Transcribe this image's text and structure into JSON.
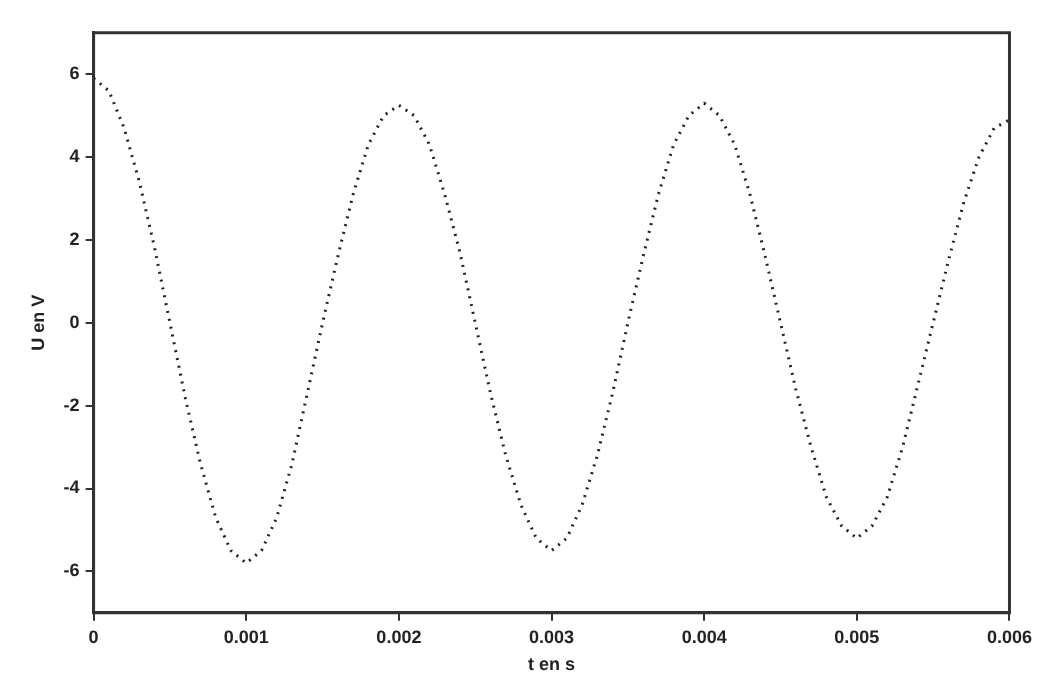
{
  "chart_data": {
    "type": "line",
    "xlabel": "t en s",
    "ylabel": "U en V",
    "x": [
      0,
      0.0001,
      0.0002,
      0.0003,
      0.0004,
      0.0005,
      0.0006,
      0.0007,
      0.0008,
      0.0009,
      0.001,
      0.0011,
      0.0012,
      0.0013,
      0.0014,
      0.0015,
      0.0016,
      0.0017,
      0.0018,
      0.0019,
      0.002,
      0.0021,
      0.0022,
      0.0023,
      0.0024,
      0.0025,
      0.0026,
      0.0027,
      0.0028,
      0.0029,
      0.003,
      0.0031,
      0.0032,
      0.0033,
      0.0034,
      0.0035,
      0.0036,
      0.0037,
      0.0038,
      0.0039,
      0.004,
      0.0041,
      0.0042,
      0.0043,
      0.0044,
      0.0045,
      0.0046,
      0.0047,
      0.0048,
      0.0049,
      0.005,
      0.0051,
      0.0052,
      0.0053,
      0.0054,
      0.0055,
      0.0056,
      0.0057,
      0.0058,
      0.0059,
      0.006
    ],
    "series": [
      {
        "color": "#222222",
        "values": [
          5.9,
          5.6,
          4.7,
          3.4,
          1.8,
          0,
          -1.8,
          -3.4,
          -4.7,
          -5.5,
          -5.8,
          -5.5,
          -4.7,
          -3.4,
          -1.7,
          0,
          1.6,
          3.1,
          4.3,
          5.0,
          5.25,
          5.0,
          4.3,
          3.1,
          1.7,
          0,
          -1.7,
          -3.2,
          -4.4,
          -5.2,
          -5.5,
          -5.2,
          -4.4,
          -3.2,
          -1.7,
          0,
          1.6,
          3.1,
          4.3,
          5.0,
          5.3,
          5.0,
          4.3,
          3.1,
          1.6,
          0,
          -1.6,
          -3.0,
          -4.2,
          -4.9,
          -5.2,
          -4.9,
          -4.2,
          -3.0,
          -1.5,
          0,
          1.5,
          2.9,
          4.0,
          4.7,
          4.9
        ]
      }
    ],
    "xlim": [
      0,
      0.006
    ],
    "xticks": [
      0,
      0.001,
      0.002,
      0.003,
      0.004,
      0.005,
      0.006
    ],
    "ylim": [
      -7,
      7
    ],
    "yticks": [
      -6,
      -4,
      -2,
      0,
      2,
      4,
      6
    ],
    "grid": false,
    "legend": false,
    "marker": "none",
    "line_style": "dotted"
  }
}
